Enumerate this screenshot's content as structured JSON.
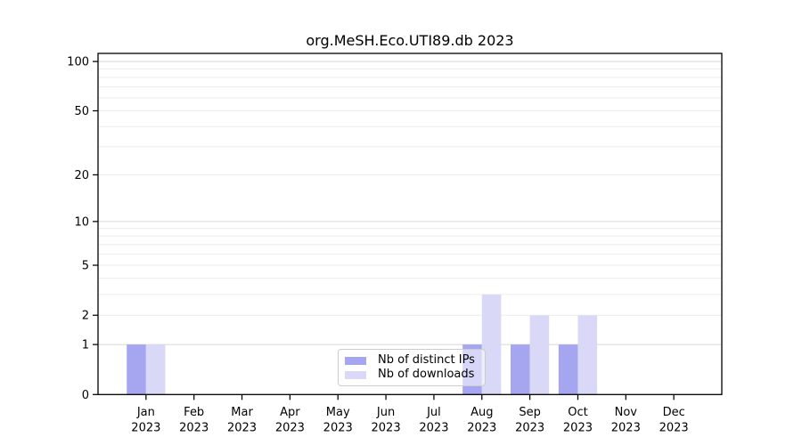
{
  "chart_data": {
    "type": "bar",
    "title": "org.MeSH.Eco.UTI89.db 2023",
    "categories": [
      {
        "month": "Jan",
        "year": "2023"
      },
      {
        "month": "Feb",
        "year": "2023"
      },
      {
        "month": "Mar",
        "year": "2023"
      },
      {
        "month": "Apr",
        "year": "2023"
      },
      {
        "month": "May",
        "year": "2023"
      },
      {
        "month": "Jun",
        "year": "2023"
      },
      {
        "month": "Jul",
        "year": "2023"
      },
      {
        "month": "Aug",
        "year": "2023"
      },
      {
        "month": "Sep",
        "year": "2023"
      },
      {
        "month": "Oct",
        "year": "2023"
      },
      {
        "month": "Nov",
        "year": "2023"
      },
      {
        "month": "Dec",
        "year": "2023"
      }
    ],
    "series": [
      {
        "name": "Nb of distinct IPs",
        "color": "#a5a5f0",
        "values": [
          1,
          0,
          0,
          0,
          0,
          0,
          0,
          1,
          1,
          1,
          0,
          0
        ]
      },
      {
        "name": "Nb of downloads",
        "color": "#d9d9f7",
        "values": [
          1,
          0,
          0,
          0,
          0,
          0,
          0,
          3,
          2,
          2,
          0,
          0
        ]
      }
    ],
    "xlabel": "",
    "ylabel": "",
    "yscale": "log10(1+x)",
    "ylim": [
      0,
      112
    ],
    "yticks": [
      0,
      1,
      2,
      5,
      10,
      20,
      50,
      100
    ],
    "grid": {
      "major_values": [
        1,
        10,
        100
      ],
      "minor_values": [
        2,
        3,
        4,
        5,
        6,
        7,
        8,
        9,
        20,
        30,
        40,
        50,
        60,
        70,
        80,
        90
      ],
      "major_color": "#d6d6d6",
      "minor_color": "#ececec"
    },
    "legend": {
      "position": "lower center",
      "items": [
        "Nb of distinct IPs",
        "Nb of downloads"
      ]
    },
    "axis_color": "#000000",
    "background_color": "#ffffff"
  }
}
